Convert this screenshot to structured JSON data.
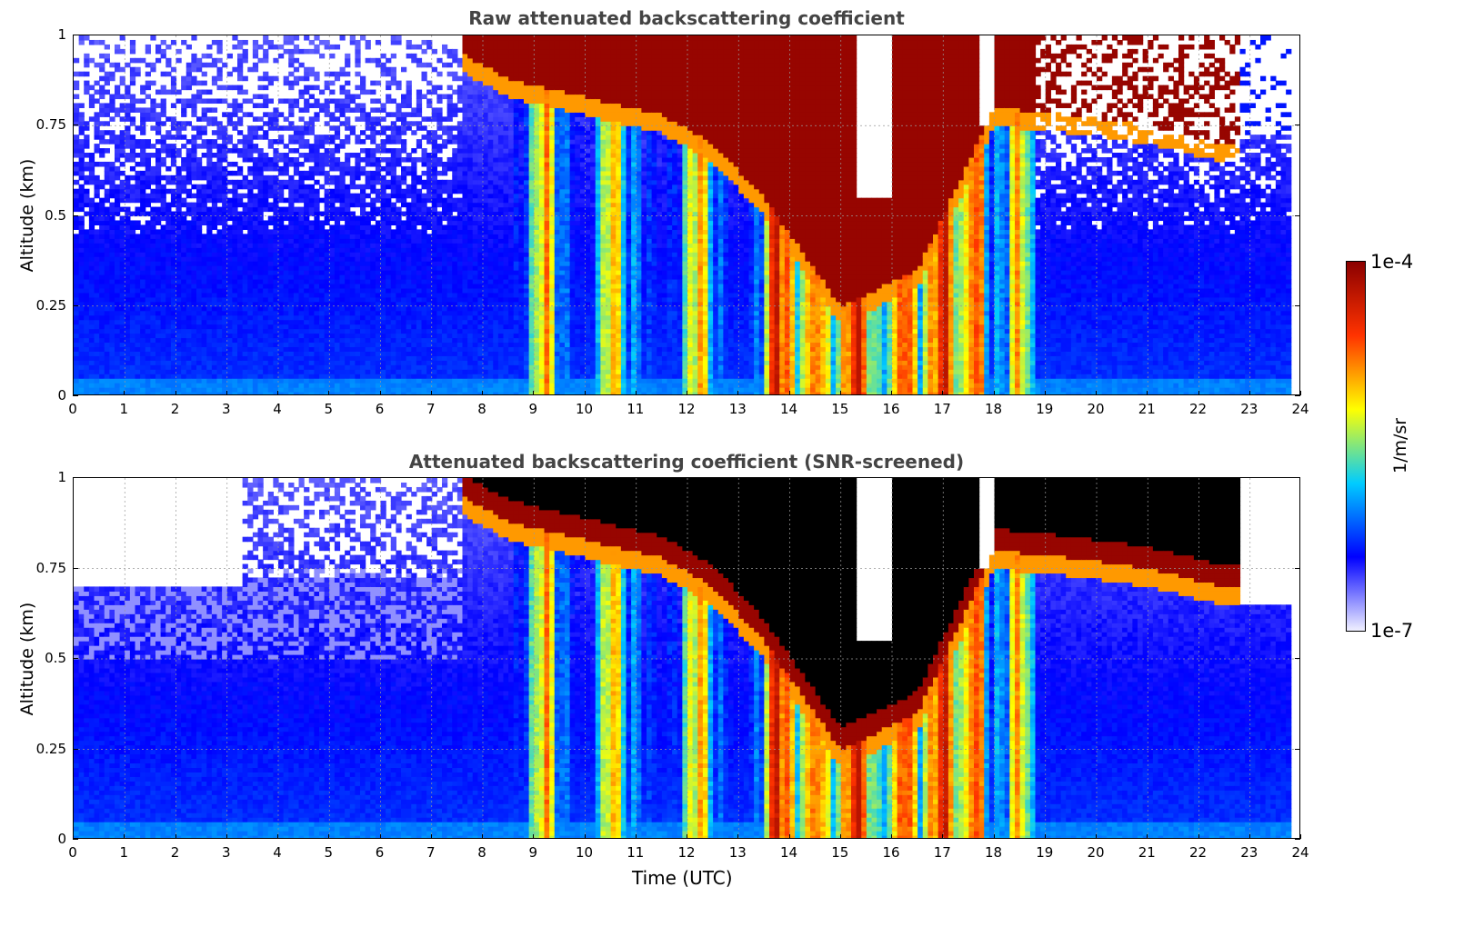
{
  "chart_data": [
    {
      "type": "heatmap",
      "title": "Raw attenuated backscattering coefficient",
      "xlabel": "",
      "ylabel": "Altitude (km)",
      "xlim": [
        0,
        24
      ],
      "ylim": [
        0,
        1
      ],
      "x_ticks": [
        "0",
        "1",
        "2",
        "3",
        "4",
        "5",
        "6",
        "7",
        "8",
        "9",
        "10",
        "11",
        "12",
        "13",
        "14",
        "15",
        "16",
        "17",
        "18",
        "19",
        "20",
        "21",
        "22",
        "23",
        "24"
      ],
      "y_ticks": [
        "0",
        "0.25",
        "0.5",
        "0.75",
        "1"
      ],
      "grid": true,
      "features": {
        "cloud_top_layer": [
          {
            "t": 7.6,
            "base_km": 0.95
          },
          {
            "t": 8.5,
            "base_km": 0.88
          },
          {
            "t": 10,
            "base_km": 0.83
          },
          {
            "t": 11.5,
            "base_km": 0.78
          },
          {
            "t": 12.5,
            "base_km": 0.7
          },
          {
            "t": 13.5,
            "base_km": 0.55
          },
          {
            "t": 15,
            "base_km": 0.25
          },
          {
            "t": 16.5,
            "base_km": 0.35
          },
          {
            "t": 18,
            "base_km": 0.8
          },
          {
            "t": 19.5,
            "base_km": 0.78
          },
          {
            "t": 21,
            "base_km": 0.75
          },
          {
            "t": 22.5,
            "base_km": 0.7
          }
        ],
        "precipitation_shafts_hours": [
          9.2,
          10.5,
          12.2,
          13.8,
          14.5,
          15.3,
          16.2,
          17.0,
          17.6,
          18.5
        ]
      }
    },
    {
      "type": "heatmap",
      "title": "Attenuated backscattering coefficient (SNR-screened)",
      "xlabel": "Time (UTC)",
      "ylabel": "Altitude (km)",
      "xlim": [
        0,
        24
      ],
      "ylim": [
        0,
        1
      ],
      "x_ticks": [
        "0",
        "1",
        "2",
        "3",
        "4",
        "5",
        "6",
        "7",
        "8",
        "9",
        "10",
        "11",
        "12",
        "13",
        "14",
        "15",
        "16",
        "17",
        "18",
        "19",
        "20",
        "21",
        "22",
        "23",
        "24"
      ],
      "y_ticks": [
        "0",
        "0.25",
        "0.5",
        "0.75",
        "1"
      ],
      "grid": true
    }
  ],
  "colorbar": {
    "label": "1/m/sr",
    "max_label": "1e-4",
    "min_label": "1e-7",
    "colormap": "jet",
    "colors": [
      "#f0f0ff",
      "#0000ff",
      "#00ccff",
      "#ffff00",
      "#ff3300",
      "#8b0000"
    ]
  }
}
